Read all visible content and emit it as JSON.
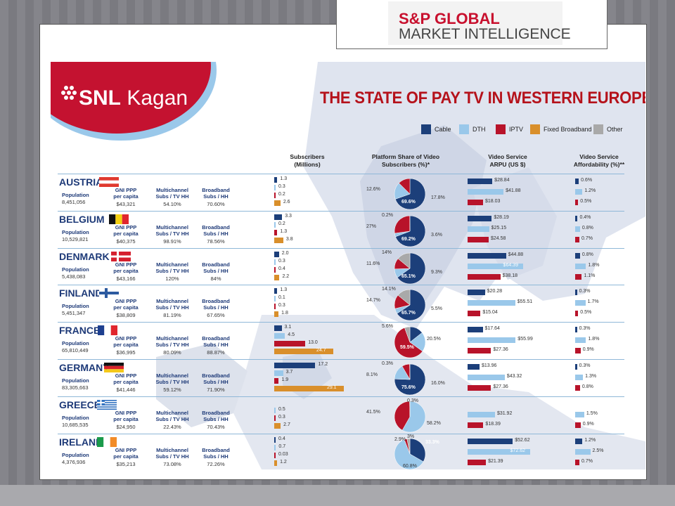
{
  "logo": {
    "line1": "S&P GLOBAL",
    "line2": "MARKET INTELLIGENCE"
  },
  "brand": {
    "name_bold": "SNL",
    "name_rest": " Kagan"
  },
  "title": "THE STATE OF PAY TV IN WESTERN EUROPE",
  "legend": [
    {
      "label": "Cable",
      "color": "#1c3f7a"
    },
    {
      "label": "DTH",
      "color": "#9ac8ea"
    },
    {
      "label": "IPTV",
      "color": "#b8132a"
    },
    {
      "label": "Fixed Broadband",
      "color": "#d98f2b"
    },
    {
      "label": "Other",
      "color": "#a9a9a9"
    }
  ],
  "headers": {
    "subscribers": "Subscribers\n(Millions)",
    "platform": "Platform Share of Video\nSubscribers (%)*",
    "arpu": "Video Service\nARPU (US $)",
    "afford": "Video Service\nAffordability (%)**"
  },
  "labels": {
    "population": "Population",
    "gni": "GNI PPP\nper capita",
    "multichannel": "Multichannel\nSubs / TV HH",
    "broadband": "Broadband\nSubs / HH"
  },
  "chart_data": {
    "type": "table",
    "countries": [
      {
        "name": "AUSTRIA",
        "population": "8,451,056",
        "gni": "$43,321",
        "multichannel": "54.10%",
        "broadband": "70.60%",
        "subs": {
          "values": [
            1.3,
            0.3,
            0.2,
            2.6
          ],
          "labels": [
            "1.3",
            "0.3",
            "0.2",
            "2.6"
          ]
        },
        "share": {
          "values": [
            69.6,
            17.8,
            12.6,
            0
          ],
          "labels": [
            "69.6%",
            "17.8%",
            "12.6%",
            ""
          ]
        },
        "arpu": {
          "values": [
            28.84,
            41.88,
            18.03
          ],
          "labels": [
            "$28.84",
            "$41.88",
            "$18.03"
          ]
        },
        "afford": {
          "values": [
            0.6,
            1.2,
            0.5
          ],
          "labels": [
            "0.6%",
            "1.2%",
            "0.5%"
          ]
        }
      },
      {
        "name": "BELGIUM",
        "population": "10,529,821",
        "gni": "$40,375",
        "multichannel": "98.91%",
        "broadband": "78.56%",
        "subs": {
          "values": [
            3.3,
            0.2,
            1.3,
            3.8
          ],
          "labels": [
            "3.3",
            "0.2",
            "1.3",
            "3.8"
          ]
        },
        "share": {
          "values": [
            69.2,
            3.6,
            27,
            0.2
          ],
          "labels": [
            "69.2%",
            "3.6%",
            "27%",
            "0.2%"
          ]
        },
        "arpu": {
          "values": [
            28.19,
            25.15,
            24.58
          ],
          "labels": [
            "$28.19",
            "$25.15",
            "$24.58"
          ]
        },
        "afford": {
          "values": [
            0.4,
            0.8,
            0.7
          ],
          "labels": [
            "0.4%",
            "0.8%",
            "0.7%"
          ]
        }
      },
      {
        "name": "DENMARK",
        "population": "5,438,083",
        "gni": "$43,166",
        "multichannel": "120%",
        "broadband": "84%",
        "subs": {
          "values": [
            2.0,
            0.3,
            0.4,
            2.2
          ],
          "labels": [
            "2.0",
            "0.3",
            "0.4",
            "2.2"
          ]
        },
        "share": {
          "values": [
            65.1,
            9.3,
            11.6,
            14
          ],
          "labels": [
            "65.1%",
            "9.3%",
            "11.6%",
            "14%"
          ]
        },
        "arpu": {
          "values": [
            44.88,
            64.39,
            38.18
          ],
          "labels": [
            "$44.88",
            "$64.39",
            "$38.18"
          ]
        },
        "afford": {
          "values": [
            0.8,
            1.8,
            1.1
          ],
          "labels": [
            "0.8%",
            "1.8%",
            "1.1%"
          ]
        }
      },
      {
        "name": "FINLAND",
        "population": "5,451,347",
        "gni": "$38,809",
        "multichannel": "81.19%",
        "broadband": "67.65%",
        "subs": {
          "values": [
            1.3,
            0.1,
            0.3,
            1.8
          ],
          "labels": [
            "1.3",
            "0.1",
            "0.3",
            "1.8"
          ]
        },
        "share": {
          "values": [
            65.7,
            5.5,
            14.7,
            14.1
          ],
          "labels": [
            "65.7%",
            "5.5%",
            "14.7%",
            "14.1%"
          ]
        },
        "arpu": {
          "values": [
            20.28,
            55.51,
            15.04
          ],
          "labels": [
            "$20.28",
            "$55.51",
            "$15.04"
          ]
        },
        "afford": {
          "values": [
            0.3,
            1.7,
            0.5
          ],
          "labels": [
            "0.3%",
            "1.7%",
            "0.5%"
          ]
        }
      },
      {
        "name": "FRANCE",
        "population": "65,810,449",
        "gni": "$36,995",
        "multichannel": "80.09%",
        "broadband": "88.87%",
        "subs": {
          "values": [
            3.1,
            4.5,
            13.0,
            24.7
          ],
          "labels": [
            "3.1",
            "4.5",
            "13.0",
            "24.7"
          ]
        },
        "share": {
          "values": [
            14.4,
            20.5,
            59.5,
            5.6
          ],
          "labels": [
            "14.4%",
            "20.5%",
            "59.5%",
            "5.6%"
          ]
        },
        "arpu": {
          "values": [
            17.64,
            55.99,
            27.36
          ],
          "labels": [
            "$17.64",
            "$55.99",
            "$27.36"
          ]
        },
        "afford": {
          "values": [
            0.3,
            1.8,
            0.9
          ],
          "labels": [
            "0.3%",
            "1.8%",
            "0.9%"
          ]
        }
      },
      {
        "name": "GERMANY",
        "population": "83,305,663",
        "gni": "$41,446",
        "multichannel": "59.12%",
        "broadband": "71.90%",
        "subs": {
          "values": [
            17.2,
            3.7,
            1.9,
            29.1
          ],
          "labels": [
            "17.2",
            "3.7",
            "1.9",
            "29.1"
          ]
        },
        "share": {
          "values": [
            75.6,
            16.0,
            8.1,
            0.3
          ],
          "labels": [
            "75.6%",
            "16.0%",
            "8.1%",
            "0.3%"
          ]
        },
        "arpu": {
          "values": [
            13.96,
            43.32,
            27.36
          ],
          "labels": [
            "$13.96",
            "$43.32",
            "$27.36"
          ]
        },
        "afford": {
          "values": [
            0.3,
            1.3,
            0.8
          ],
          "labels": [
            "0.3%",
            "1.3%",
            "0.8%"
          ]
        }
      },
      {
        "name": "GREECE",
        "population": "10,685,535",
        "gni": "$24,950",
        "multichannel": "22.43%",
        "broadband": "70.43%",
        "subs": {
          "values": [
            0,
            0.5,
            0.3,
            2.7
          ],
          "labels": [
            "",
            "0.5",
            "0.3",
            "2.7"
          ]
        },
        "share": {
          "values": [
            0,
            58.2,
            41.5,
            0.3
          ],
          "labels": [
            "",
            "58.2%",
            "41.5%",
            "0.3%"
          ]
        },
        "arpu": {
          "values": [
            0,
            31.92,
            18.39
          ],
          "labels": [
            "",
            "$31.92",
            "$18.39"
          ]
        },
        "afford": {
          "values": [
            0,
            1.5,
            0.9
          ],
          "labels": [
            "",
            "1.5%",
            "0.9%"
          ]
        }
      },
      {
        "name": "IRELAND",
        "population": "4,376,936",
        "gni": "$35,213",
        "multichannel": "73.08%",
        "broadband": "72.26%",
        "subs": {
          "values": [
            0.4,
            0.7,
            0.03,
            1.2
          ],
          "labels": [
            "0.4",
            "0.7",
            "0.03",
            "1.2"
          ]
        },
        "share": {
          "values": [
            33.3,
            60.8,
            2.9,
            3
          ],
          "labels": [
            "33.3%",
            "60.8%",
            "2.9%",
            "3%"
          ]
        },
        "arpu": {
          "values": [
            52.62,
            72.62,
            21.39
          ],
          "labels": [
            "$52.62",
            "$72.62",
            "$21.39"
          ]
        },
        "afford": {
          "values": [
            1.2,
            2.5,
            0.7
          ],
          "labels": [
            "1.2%",
            "2.5%",
            "0.7%"
          ]
        }
      }
    ]
  }
}
